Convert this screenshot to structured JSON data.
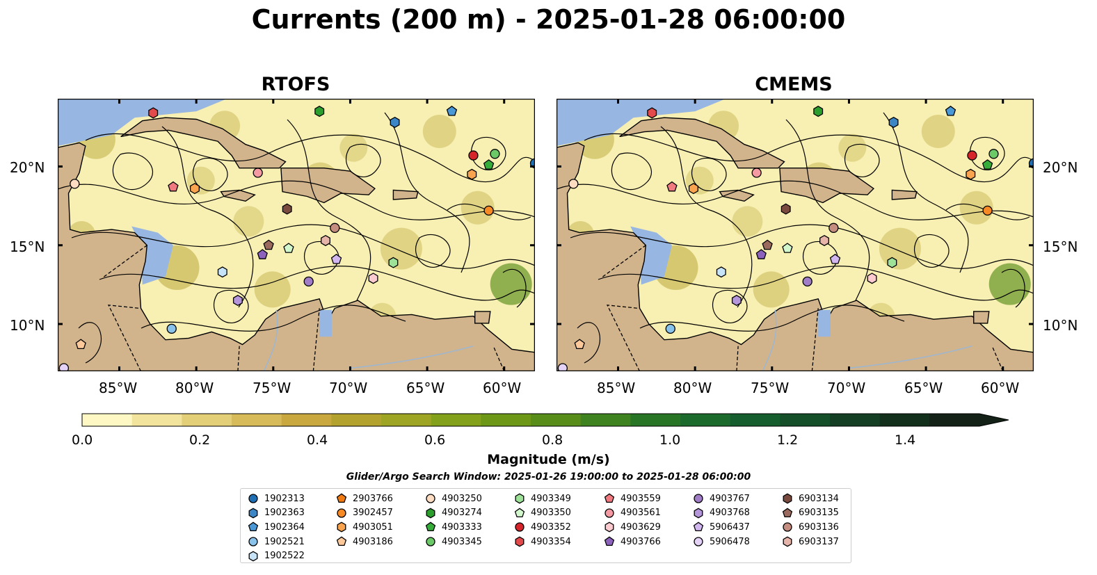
{
  "title": "Currents (200 m) - 2025-01-28 06:00:00",
  "panels": [
    {
      "title": "RTOFS"
    },
    {
      "title": "CMEMS"
    }
  ],
  "axes": {
    "lon_ticks": [
      "85°W",
      "80°W",
      "75°W",
      "70°W",
      "65°W",
      "60°W"
    ],
    "lat_ticks_left": [
      "20°N",
      "15°N",
      "10°N"
    ],
    "lat_ticks_right": [
      "20°N",
      "15°N",
      "10°N"
    ]
  },
  "colorbar": {
    "title": "Magnitude (m/s)",
    "tick_labels": [
      "0.0",
      "0.2",
      "0.4",
      "0.6",
      "0.8",
      "1.0",
      "1.2",
      "1.4"
    ],
    "range": [
      0,
      1.5
    ],
    "extend": "max",
    "colors": [
      "#fdf8c4",
      "#f2e49c",
      "#e4cf79",
      "#d7bb5a",
      "#c9a840",
      "#b4a22f",
      "#9ea524",
      "#84a11c",
      "#6d9717",
      "#588d1a",
      "#3f8220",
      "#287625",
      "#1c6a2c",
      "#165e2d",
      "#144f2a",
      "#143f24",
      "#13301d",
      "#132116"
    ]
  },
  "colors": {
    "land": "#d2b48c",
    "ocean": "#97b6e1",
    "rivers": "#9fb6cf"
  },
  "search_window": "Glider/Argo Search Window: 2025-01-26 19:00:00 to 2025-01-28 06:00:00",
  "legend": [
    [
      {
        "id": "1902313",
        "color": "#1f6fb4",
        "marker": "circle"
      },
      {
        "id": "1902363",
        "color": "#3c86c6",
        "marker": "hexagon"
      },
      {
        "id": "1902364",
        "color": "#4a98d6",
        "marker": "pentagon"
      },
      {
        "id": "1902521",
        "color": "#89c3ec",
        "marker": "circle"
      },
      {
        "id": "1902522",
        "color": "#c7e3f8",
        "marker": "hexagon"
      }
    ],
    [
      {
        "id": "2903766",
        "color": "#f07b12",
        "marker": "pentagon"
      },
      {
        "id": "3902457",
        "color": "#f78a25",
        "marker": "circle"
      },
      {
        "id": "4903051",
        "color": "#fba44f",
        "marker": "hexagon"
      },
      {
        "id": "4903186",
        "color": "#fdc99a",
        "marker": "pentagon"
      }
    ],
    [
      {
        "id": "4903250",
        "color": "#fddcc2",
        "marker": "circle"
      },
      {
        "id": "4903274",
        "color": "#2b9e2e",
        "marker": "hexagon"
      },
      {
        "id": "4903333",
        "color": "#36ac3a",
        "marker": "pentagon"
      },
      {
        "id": "4903345",
        "color": "#6cc968",
        "marker": "circle"
      }
    ],
    [
      {
        "id": "4903349",
        "color": "#9ee29a",
        "marker": "hexagon"
      },
      {
        "id": "4903350",
        "color": "#d2f7cd",
        "marker": "pentagon"
      },
      {
        "id": "4903352",
        "color": "#d6252a",
        "marker": "circle"
      },
      {
        "id": "4903354",
        "color": "#e34a4c",
        "marker": "hexagon"
      }
    ],
    [
      {
        "id": "4903559",
        "color": "#f07a80",
        "marker": "pentagon"
      },
      {
        "id": "4903561",
        "color": "#f59aa2",
        "marker": "circle"
      },
      {
        "id": "4903629",
        "color": "#fccbd0",
        "marker": "hexagon"
      },
      {
        "id": "4903766",
        "color": "#8c62bd",
        "marker": "pentagon"
      }
    ],
    [
      {
        "id": "4903767",
        "color": "#a17cc7",
        "marker": "circle"
      },
      {
        "id": "4903768",
        "color": "#b596da",
        "marker": "hexagon"
      },
      {
        "id": "5906437",
        "color": "#d1b6ef",
        "marker": "pentagon"
      },
      {
        "id": "5906478",
        "color": "#e5d2f7",
        "marker": "circle"
      }
    ],
    [
      {
        "id": "6903134",
        "color": "#7a4a3f",
        "marker": "hexagon"
      },
      {
        "id": "6903135",
        "color": "#9a6a5e",
        "marker": "pentagon"
      },
      {
        "id": "6903136",
        "color": "#c58d80",
        "marker": "circle"
      },
      {
        "id": "6903137",
        "color": "#e7b4a9",
        "marker": "hexagon"
      }
    ]
  ],
  "floats": [
    {
      "id": "4903354",
      "lon": -82.8,
      "lat": 23.4
    },
    {
      "id": "4903274",
      "lon": -72.0,
      "lat": 23.5
    },
    {
      "id": "1902363",
      "lon": -67.1,
      "lat": 22.8
    },
    {
      "id": "1902364",
      "lon": -63.4,
      "lat": 23.5
    },
    {
      "id": "4903352",
      "lon": -62.0,
      "lat": 20.7
    },
    {
      "id": "4903345",
      "lon": -60.6,
      "lat": 20.8
    },
    {
      "id": "4903333",
      "lon": -61.0,
      "lat": 20.1
    },
    {
      "id": "1902313",
      "lon": -58.0,
      "lat": 20.2
    },
    {
      "id": "4903051",
      "lon": -62.1,
      "lat": 19.5
    },
    {
      "id": "4903250",
      "lon": -87.9,
      "lat": 18.9
    },
    {
      "id": "4903559",
      "lon": -81.5,
      "lat": 18.7
    },
    {
      "id": "4903051",
      "lon": -80.1,
      "lat": 18.6
    },
    {
      "id": "4903561",
      "lon": -76.0,
      "lat": 19.6
    },
    {
      "id": "3902457",
      "lon": -61.0,
      "lat": 17.2
    },
    {
      "id": "6903134",
      "lon": -74.1,
      "lat": 17.3
    },
    {
      "id": "6903136",
      "lon": -71.0,
      "lat": 16.1
    },
    {
      "id": "6903135",
      "lon": -75.3,
      "lat": 15.0
    },
    {
      "id": "4903350",
      "lon": -74.0,
      "lat": 14.8
    },
    {
      "id": "4903766",
      "lon": -75.7,
      "lat": 14.4
    },
    {
      "id": "6903137",
      "lon": -71.6,
      "lat": 15.3
    },
    {
      "id": "5906437",
      "lon": -70.9,
      "lat": 14.1
    },
    {
      "id": "4903349",
      "lon": -67.2,
      "lat": 13.9
    },
    {
      "id": "1902522",
      "lon": -78.3,
      "lat": 13.3
    },
    {
      "id": "4903767",
      "lon": -72.7,
      "lat": 12.7
    },
    {
      "id": "4903629",
      "lon": -68.5,
      "lat": 12.9
    },
    {
      "id": "4903768",
      "lon": -77.3,
      "lat": 11.5
    },
    {
      "id": "1902521",
      "lon": -81.6,
      "lat": 9.7
    },
    {
      "id": "4903186",
      "lon": -87.5,
      "lat": 8.7
    },
    {
      "id": "5906478",
      "lon": -88.6,
      "lat": 7.2
    }
  ]
}
